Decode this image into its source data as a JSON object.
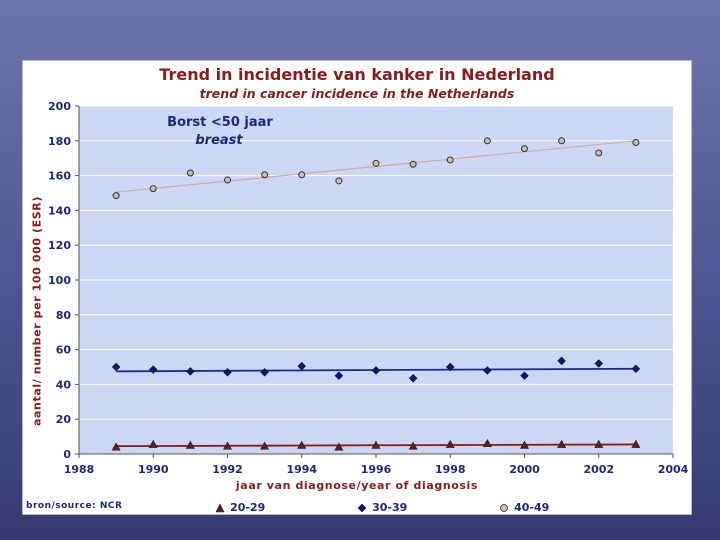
{
  "chart_data": {
    "type": "scatter",
    "title": "Trend in incidentie van kanker in Nederland",
    "subtitle": "trend in cancer incidence in the Netherlands",
    "ylabel": "aantal/ number  per 100 000 (ESR)",
    "xlabel": "jaar van diagnose/year of diagnosis",
    "annotation_line1": "Borst <50 jaar",
    "annotation_line2": "breast",
    "source": "bron/source: NCR",
    "xlim": [
      1988,
      2004
    ],
    "ylim": [
      0,
      200
    ],
    "x_ticks": [
      1988,
      1990,
      1992,
      1994,
      1996,
      1998,
      2000,
      2002,
      2004
    ],
    "y_ticks": [
      0,
      20,
      40,
      60,
      80,
      100,
      120,
      140,
      160,
      180,
      200
    ],
    "grid": "horizontal",
    "legend_position": "bottom",
    "x": [
      1989,
      1990,
      1991,
      1992,
      1993,
      1994,
      1995,
      1996,
      1997,
      1998,
      1999,
      2000,
      2001,
      2002,
      2003
    ],
    "series": [
      {
        "name": "20-29",
        "marker": "triangle",
        "color": "#6b1a1a",
        "trend_color": "#8b1a1a",
        "values": [
          4,
          5.5,
          5,
          4.5,
          4.5,
          5,
          4,
          5,
          4.5,
          5.5,
          6,
          5,
          5.5,
          5.5,
          5.5
        ],
        "trend": [
          4.5,
          5.5
        ]
      },
      {
        "name": "30-39",
        "marker": "diamond",
        "color": "#0a1a7a",
        "trend_color": "#1a2a8a",
        "values": [
          50,
          48.5,
          47.5,
          47,
          47,
          50.5,
          45,
          48,
          43.5,
          50,
          48,
          45,
          53.5,
          52,
          49
        ],
        "trend": [
          47.5,
          49
        ]
      },
      {
        "name": "40-49",
        "marker": "circle",
        "color": "#c8c0a8",
        "trend_color": "#d8a8a0",
        "values": [
          148.5,
          152.5,
          161.5,
          157.5,
          160.5,
          160.5,
          157,
          167,
          166.5,
          169,
          180,
          175.5,
          180,
          173,
          179
        ],
        "trend": [
          150.5,
          180
        ]
      }
    ]
  }
}
